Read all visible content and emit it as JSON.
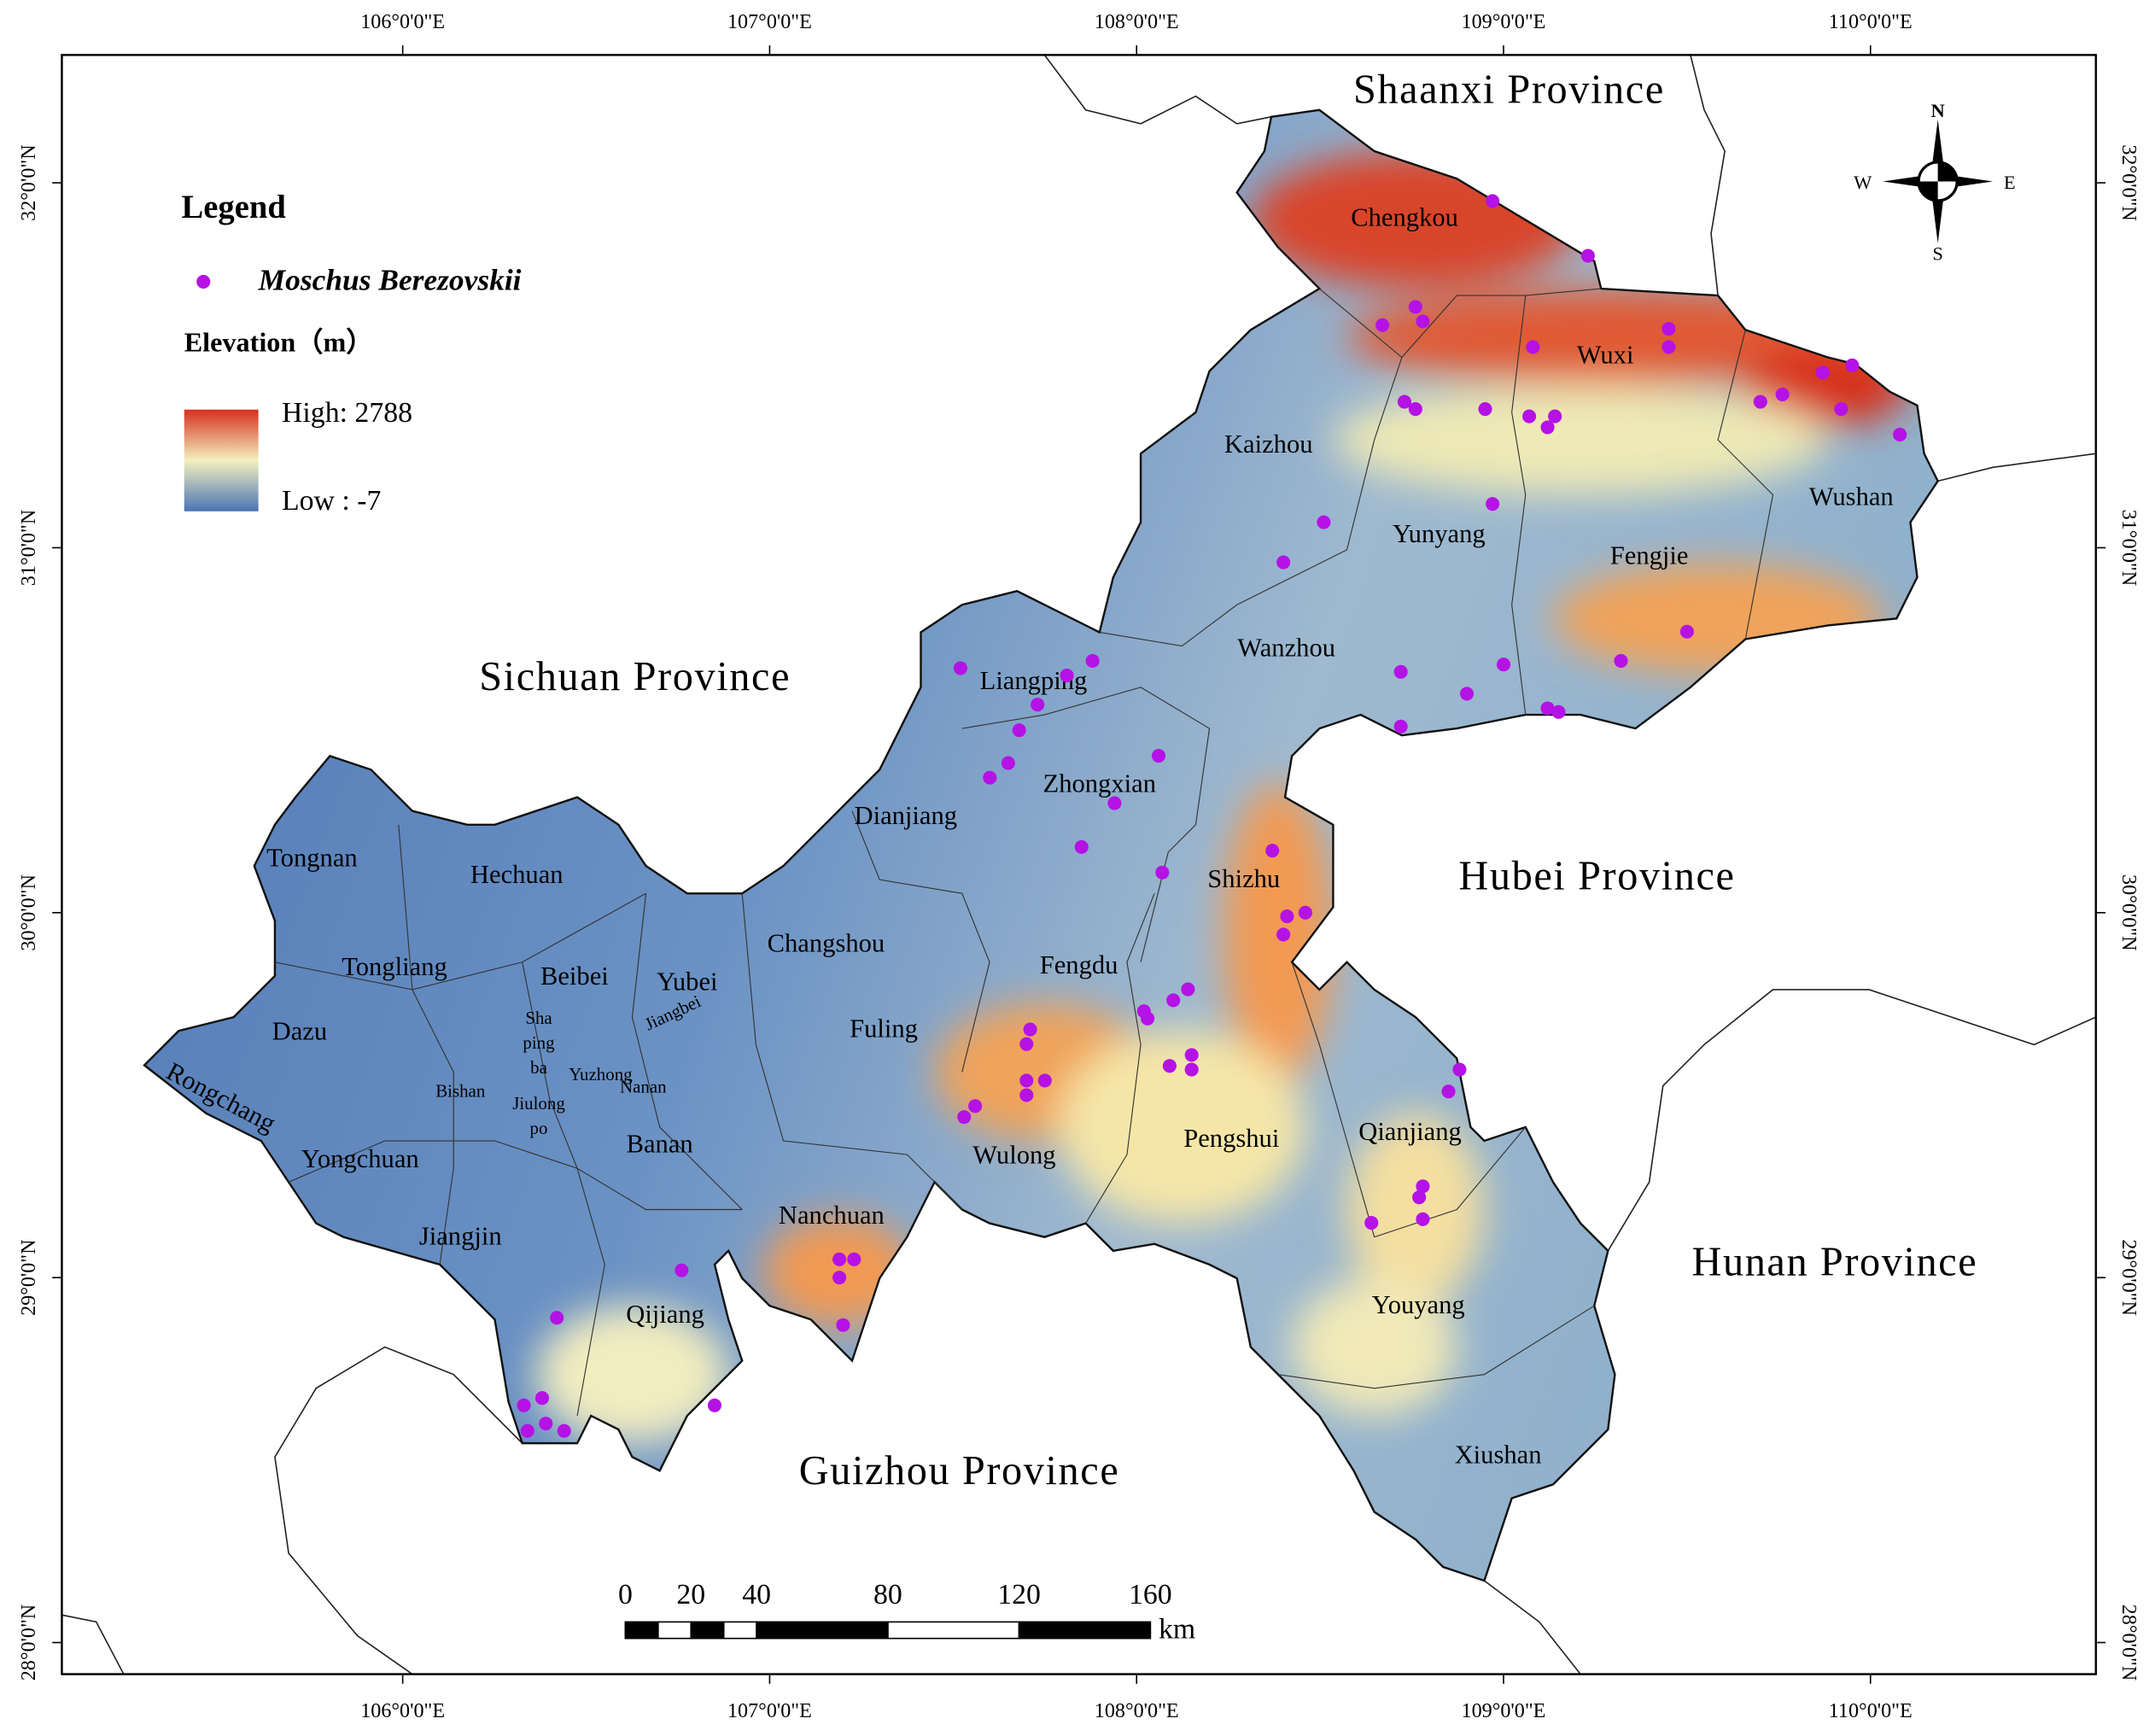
{
  "map": {
    "lon_ticks": [
      {
        "value": 106,
        "label": "106°0'0\"E"
      },
      {
        "value": 107,
        "label": "107°0'0\"E"
      },
      {
        "value": 108,
        "label": "108°0'0\"E"
      },
      {
        "value": 109,
        "label": "109°0'0\"E"
      },
      {
        "value": 110,
        "label": "110°0'0\"E"
      }
    ],
    "lat_ticks": [
      {
        "value": 32,
        "label": "32°0'0\"N"
      },
      {
        "value": 31,
        "label": "31°0'0\"N"
      },
      {
        "value": 30,
        "label": "30°0'0\"N"
      },
      {
        "value": 29,
        "label": "29°0'0\"N"
      },
      {
        "value": 28,
        "label": "28°0'0\"N"
      }
    ],
    "provinces": [
      "Shaanxi Province",
      "Sichuan Province",
      "Hubei Province",
      "Hunan Province",
      "Guizhou Province"
    ],
    "districts": [
      {
        "lines": [
          "Chengkou"
        ]
      },
      {
        "lines": [
          "Wuxi"
        ]
      },
      {
        "lines": [
          "Kaizhou"
        ]
      },
      {
        "lines": [
          "Wushan"
        ]
      },
      {
        "lines": [
          "Yunyang"
        ]
      },
      {
        "lines": [
          "Fengjie"
        ]
      },
      {
        "lines": [
          "Wanzhou"
        ]
      },
      {
        "lines": [
          "Liangping"
        ]
      },
      {
        "lines": [
          "Zhongxian"
        ]
      },
      {
        "lines": [
          "Dianjiang"
        ]
      },
      {
        "lines": [
          "Tongnan"
        ]
      },
      {
        "lines": [
          "Hechuan"
        ]
      },
      {
        "lines": [
          "Shizhu"
        ]
      },
      {
        "lines": [
          "Changshou"
        ]
      },
      {
        "lines": [
          "Tongliang"
        ]
      },
      {
        "lines": [
          "Fengdu"
        ]
      },
      {
        "lines": [
          "Beibei"
        ]
      },
      {
        "lines": [
          "Yubei"
        ]
      },
      {
        "lines": [
          "Dazu"
        ]
      },
      {
        "lines": [
          "Fuling"
        ]
      },
      {
        "lines": [
          "Rongchang"
        ]
      },
      {
        "lines": [
          "Sha",
          "ping",
          "ba"
        ]
      },
      {
        "lines": [
          "Jiangbei"
        ]
      },
      {
        "lines": [
          "Yuzhong"
        ]
      },
      {
        "lines": [
          "Nanan"
        ]
      },
      {
        "lines": [
          "Bishan"
        ]
      },
      {
        "lines": [
          "Jiulong",
          "po"
        ]
      },
      {
        "lines": [
          "Banan"
        ]
      },
      {
        "lines": [
          "Yongchuan"
        ]
      },
      {
        "lines": [
          "Wulong"
        ]
      },
      {
        "lines": [
          "Pengshui"
        ]
      },
      {
        "lines": [
          "Qianjiang"
        ]
      },
      {
        "lines": [
          "Nanchuan"
        ]
      },
      {
        "lines": [
          "Jiangjin"
        ]
      },
      {
        "lines": [
          "Qijiang"
        ]
      },
      {
        "lines": [
          "Youyang"
        ]
      },
      {
        "lines": [
          "Xiushan"
        ]
      }
    ],
    "occurrences": {
      "lon": [
        108.97,
        109.23,
        108.67,
        108.76,
        108.78,
        109.08,
        109.45,
        109.45,
        109.87,
        109.95,
        109.92,
        109.76,
        109.7,
        110.08,
        108.73,
        108.76,
        108.95,
        109.07,
        109.12,
        109.14,
        108.97,
        108.51,
        108.4,
        109.5,
        109.32,
        109.0,
        108.9,
        108.72,
        108.72,
        109.12,
        109.15,
        107.52,
        107.88,
        107.81,
        107.73,
        107.68,
        107.65,
        107.6,
        108.06,
        107.94,
        107.85,
        108.37,
        108.07,
        108.41,
        108.46,
        108.4,
        108.14,
        108.1,
        108.02,
        108.03,
        107.71,
        107.7,
        107.7,
        107.75,
        107.7,
        107.56,
        107.53,
        108.09,
        108.15,
        108.15,
        108.88,
        108.85,
        108.78,
        108.77,
        108.78,
        108.64,
        107.19,
        107.23,
        107.19,
        107.2,
        106.76,
        106.42,
        106.85,
        106.38,
        106.33,
        106.34,
        106.39,
        106.44
      ],
      "lat": [
        31.95,
        31.8,
        31.61,
        31.66,
        31.62,
        31.55,
        31.6,
        31.55,
        31.48,
        31.5,
        31.38,
        31.42,
        31.4,
        31.31,
        31.4,
        31.38,
        31.38,
        31.36,
        31.33,
        31.36,
        31.12,
        31.07,
        30.96,
        30.77,
        30.69,
        30.68,
        30.6,
        30.66,
        30.51,
        30.56,
        30.55,
        30.67,
        30.69,
        30.65,
        30.57,
        30.5,
        30.41,
        30.37,
        30.43,
        30.3,
        30.18,
        30.17,
        30.11,
        29.99,
        30.0,
        29.94,
        29.79,
        29.76,
        29.73,
        29.71,
        29.68,
        29.64,
        29.54,
        29.54,
        29.5,
        29.47,
        29.44,
        29.58,
        29.61,
        29.57,
        29.57,
        29.51,
        29.25,
        29.22,
        29.16,
        29.15,
        29.05,
        29.05,
        29.0,
        28.87,
        29.02,
        28.89,
        28.65,
        28.67,
        28.65,
        28.58,
        28.6,
        28.58
      ],
      "color": "#b512e6"
    }
  },
  "legend": {
    "title": "Legend",
    "species": "Moschus Berezovskii",
    "elevation_title": "Elevation（m）",
    "high": "High: 2788",
    "low": "Low : -7"
  },
  "compass": {
    "n": "N",
    "s": "S",
    "e": "E",
    "w": "W"
  },
  "scale_bar": {
    "ticks": [
      0,
      20,
      40,
      80,
      120,
      160
    ],
    "unit": "km"
  }
}
